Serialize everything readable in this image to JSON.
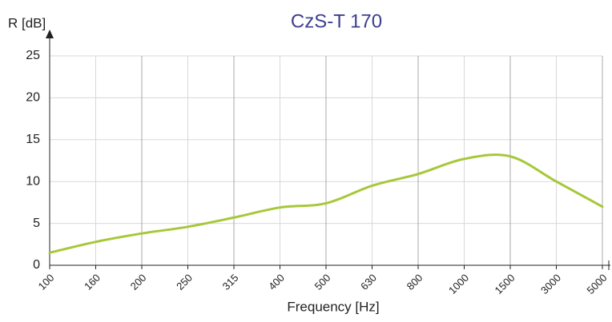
{
  "chart_data": {
    "type": "line",
    "title": "CzS-T 170",
    "y_label": "R [dB]",
    "x_label": "Frequency [Hz]",
    "categories": [
      "100",
      "160",
      "200",
      "250",
      "315",
      "400",
      "500",
      "630",
      "800",
      "1000",
      "1500",
      "3000",
      "5000"
    ],
    "series": [
      {
        "name": "CzS-T 170",
        "color": "#a6c83a",
        "values": [
          1.5,
          2.8,
          3.8,
          4.6,
          5.7,
          6.9,
          7.4,
          9.5,
          10.9,
          12.7,
          13.0,
          10.0,
          7.0
        ]
      }
    ],
    "ylim": [
      0,
      25
    ],
    "yticks": [
      0,
      5,
      10,
      15,
      20,
      25
    ],
    "grid": true
  }
}
